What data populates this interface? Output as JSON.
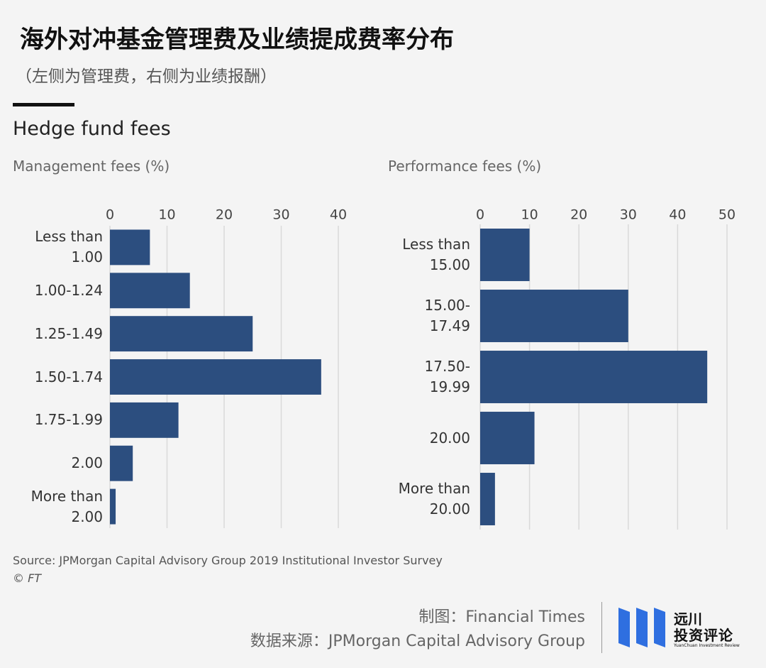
{
  "header": {
    "title": "海外对冲基金管理费及业绩提成费率分布",
    "subtitle": "（左侧为管理费，右侧为业绩报酬）",
    "chart_heading": "Hedge fund fees"
  },
  "chart_data": [
    {
      "type": "bar",
      "orientation": "horizontal",
      "title": "Management fees (%)",
      "categories": [
        "Less than\n1.00",
        "1.00-1.24",
        "1.25-1.49",
        "1.50-1.74",
        "1.75-1.99",
        "2.00",
        "More than\n2.00"
      ],
      "values": [
        7,
        14,
        25,
        37,
        12,
        4,
        1
      ],
      "color": "#2c4e7f",
      "xlim": [
        0,
        40
      ],
      "xticks": [
        0,
        10,
        20,
        30,
        40
      ],
      "grid": true
    },
    {
      "type": "bar",
      "orientation": "horizontal",
      "title": "Performance fees (%)",
      "categories": [
        "Less than\n15.00",
        "15.00-\n17.49",
        "17.50-\n19.99",
        "20.00",
        "More than\n20.00"
      ],
      "values": [
        10,
        30,
        46,
        11,
        3
      ],
      "color": "#2c4e7f",
      "xlim": [
        0,
        50
      ],
      "xticks": [
        0,
        10,
        20,
        30,
        40,
        50
      ],
      "grid": true
    }
  ],
  "footer": {
    "source": "Source: JPMorgan Capital Advisory Group 2019 Institutional Investor Survey",
    "copyright": "© FT",
    "credit_chart": "制图：Financial Times",
    "credit_data": "数据来源：JPMorgan Capital Advisory Group",
    "logo_name": "远川",
    "logo_sub": "投资评论",
    "logo_en": "YuanChuan Investment Review"
  }
}
